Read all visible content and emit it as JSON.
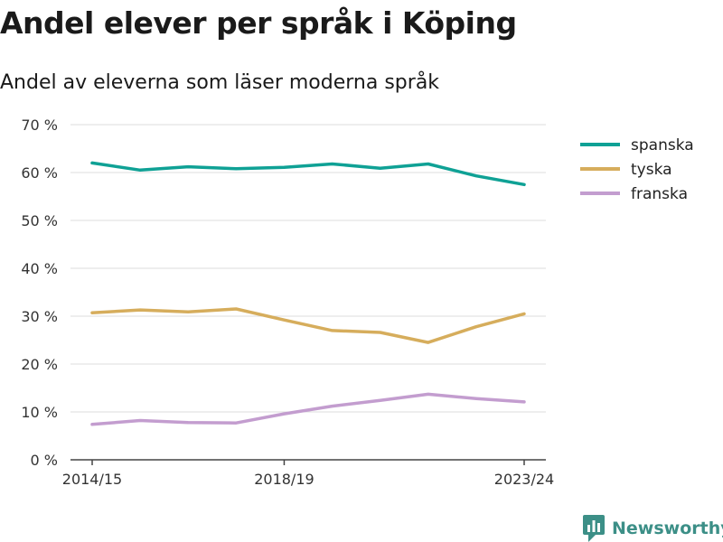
{
  "title": "Andel elever per språk i Köping",
  "subtitle": "Andel av eleverna som läser moderna språk",
  "brand": "Newsworthy",
  "chart_data": {
    "type": "line",
    "x": [
      "2014/15",
      "2015/16",
      "2016/17",
      "2017/18",
      "2018/19",
      "2019/20",
      "2020/21",
      "2021/22",
      "2022/23",
      "2023/24"
    ],
    "x_tick_labels": [
      "2014/15",
      "2018/19",
      "2023/24"
    ],
    "y_tick_labels": [
      "0 %",
      "10 %",
      "20 %",
      "30 %",
      "40 %",
      "50 %",
      "60 %",
      "70 %"
    ],
    "ylim": [
      0,
      70
    ],
    "grid": true,
    "legend_position": "right",
    "series": [
      {
        "name": "spanska",
        "color": "#0fa195",
        "values": [
          62,
          60.5,
          61.2,
          60.8,
          61.1,
          61.8,
          60.9,
          61.8,
          59.3,
          57.5
        ]
      },
      {
        "name": "tyska",
        "color": "#d6ad5c",
        "values": [
          30.7,
          31.3,
          30.9,
          31.5,
          29.2,
          27.0,
          26.6,
          24.5,
          27.8,
          30.5
        ]
      },
      {
        "name": "franska",
        "color": "#c39dcf",
        "values": [
          7.4,
          8.2,
          7.8,
          7.7,
          9.6,
          11.2,
          12.4,
          13.7,
          12.8,
          12.1
        ]
      }
    ]
  }
}
